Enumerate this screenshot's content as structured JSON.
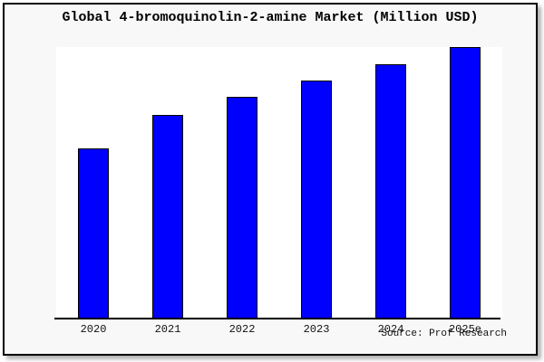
{
  "title": "Global 4-bromoquinolin-2-amine Market (Million USD)",
  "source": "Source: Prof Research",
  "colors": {
    "page_bg": "#f8f8f8",
    "plot_bg": "#ffffff",
    "bar_fill": "#0000ff",
    "bar_border": "#000000",
    "frame_border": "#000000",
    "text": "#000000"
  },
  "chart_data": {
    "type": "bar",
    "title": "Global 4-bromoquinolin-2-amine Market (Million USD)",
    "categories": [
      "2020",
      "2021",
      "2022",
      "2023",
      "2024",
      "2025e"
    ],
    "values": [
      62.7,
      75.0,
      81.7,
      87.7,
      93.7,
      100.0
    ],
    "units": "relative index (no y-axis labels shown; tallest bar 2025e = 100)",
    "xlabel": "",
    "ylabel": "",
    "ylim": [
      0,
      100
    ],
    "grid": false,
    "legend": false,
    "bar_color": "#0000ff",
    "bar_border_color": "#000000",
    "source_label": "Source: Prof Research"
  }
}
